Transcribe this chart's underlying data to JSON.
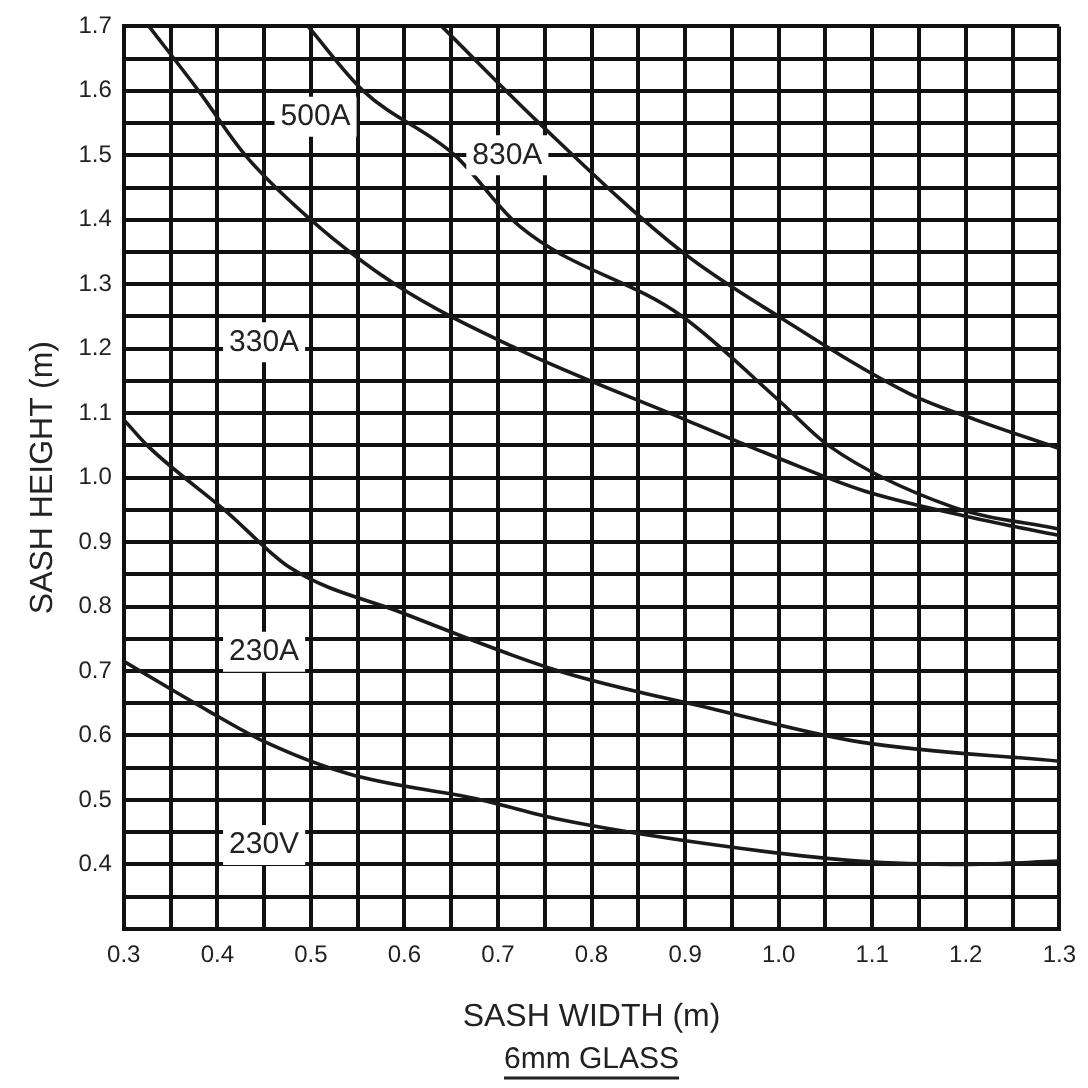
{
  "chart_data": {
    "type": "line",
    "xlabel": "SASH WIDTH (m)",
    "ylabel": "SASH HEIGHT (m)",
    "xlim": [
      0.3,
      1.3
    ],
    "ylim": [
      0.3,
      1.7
    ],
    "xticks": [
      0.3,
      {
        "value": 0.35,
        "label": null
      },
      0.4,
      {
        "value": 0.45,
        "label": null
      },
      0.5,
      {
        "value": 0.55,
        "label": null
      },
      0.6,
      {
        "value": 0.65,
        "label": null
      },
      0.7,
      {
        "value": 0.75,
        "label": null
      },
      0.8,
      {
        "value": 0.85,
        "label": null
      },
      0.9,
      {
        "value": 0.95,
        "label": null
      },
      {
        "value": 1.0,
        "label": "1.0"
      },
      {
        "value": 1.05,
        "label": null
      },
      1.1,
      {
        "value": 1.15,
        "label": null
      },
      1.2,
      {
        "value": 1.25,
        "label": null
      },
      1.3
    ],
    "yticks": [
      {
        "value": 0.35,
        "label": null
      },
      0.4,
      {
        "value": 0.45,
        "label": null
      },
      0.5,
      {
        "value": 0.55,
        "label": null
      },
      0.6,
      {
        "value": 0.65,
        "label": null
      },
      0.7,
      {
        "value": 0.75,
        "label": null
      },
      0.8,
      {
        "value": 0.85,
        "label": null
      },
      0.9,
      {
        "value": 0.95,
        "label": null
      },
      {
        "value": 1.0,
        "label": "1.0"
      },
      {
        "value": 1.05,
        "label": null
      },
      1.1,
      {
        "value": 1.15,
        "label": null
      },
      1.2,
      {
        "value": 1.25,
        "label": null
      },
      1.3,
      {
        "value": 1.35,
        "label": null
      },
      1.4,
      {
        "value": 1.45,
        "label": null
      },
      1.5,
      {
        "value": 1.55,
        "label": null
      },
      1.6,
      {
        "value": 1.65,
        "label": null
      },
      1.7
    ],
    "grid": true,
    "marker": "none",
    "line_style": "solid",
    "series": [
      {
        "color": "#1a1a1a",
        "x": [
          0.327,
          0.38,
          0.43,
          0.5,
          0.59,
          0.72,
          0.9,
          1.0,
          1.09,
          1.2,
          1.3
        ],
        "values": [
          1.7,
          1.6,
          1.5,
          1.4,
          1.3,
          1.2,
          1.09,
          1.03,
          0.98,
          0.94,
          0.91
        ]
      },
      {
        "color": "#1a1a1a",
        "x": [
          0.497,
          0.556,
          0.654,
          0.723,
          0.897,
          1.0,
          1.053,
          1.185,
          1.3
        ],
        "values": [
          1.7,
          1.6,
          1.5,
          1.39,
          1.25,
          1.12,
          1.05,
          0.955,
          0.92
        ]
      },
      {
        "color": "#1a1a1a",
        "x": [
          0.64,
          0.744,
          0.897,
          1.0,
          1.14,
          1.21,
          1.3
        ],
        "values": [
          1.7,
          1.55,
          1.35,
          1.25,
          1.13,
          1.09,
          1.045
        ]
      },
      {
        "color": "#1a1a1a",
        "x": [
          0.3,
          0.325,
          0.41,
          0.478,
          0.598,
          0.765,
          0.933,
          1.086,
          1.3
        ],
        "values": [
          1.09,
          1.05,
          0.947,
          0.86,
          0.79,
          0.7,
          0.64,
          0.59,
          0.56
        ]
      },
      {
        "color": "#1a1a1a",
        "x": [
          0.3,
          0.388,
          0.451,
          0.541,
          0.682,
          0.765,
          0.933,
          1.086,
          1.2,
          1.3
        ],
        "values": [
          0.715,
          0.64,
          0.59,
          0.54,
          0.5,
          0.47,
          0.43,
          0.405,
          0.4,
          0.405
        ]
      }
    ],
    "annotations": [
      {
        "text": "500A",
        "x": 0.505,
        "y": 1.56
      },
      {
        "text": "830A",
        "x": 0.71,
        "y": 1.5
      },
      {
        "text": "330A",
        "x": 0.45,
        "y": 1.21
      },
      {
        "text": "230A",
        "x": 0.45,
        "y": 0.73
      },
      {
        "text": "230V",
        "x": 0.45,
        "y": 0.43
      },
      "6mm GLASS"
    ]
  }
}
